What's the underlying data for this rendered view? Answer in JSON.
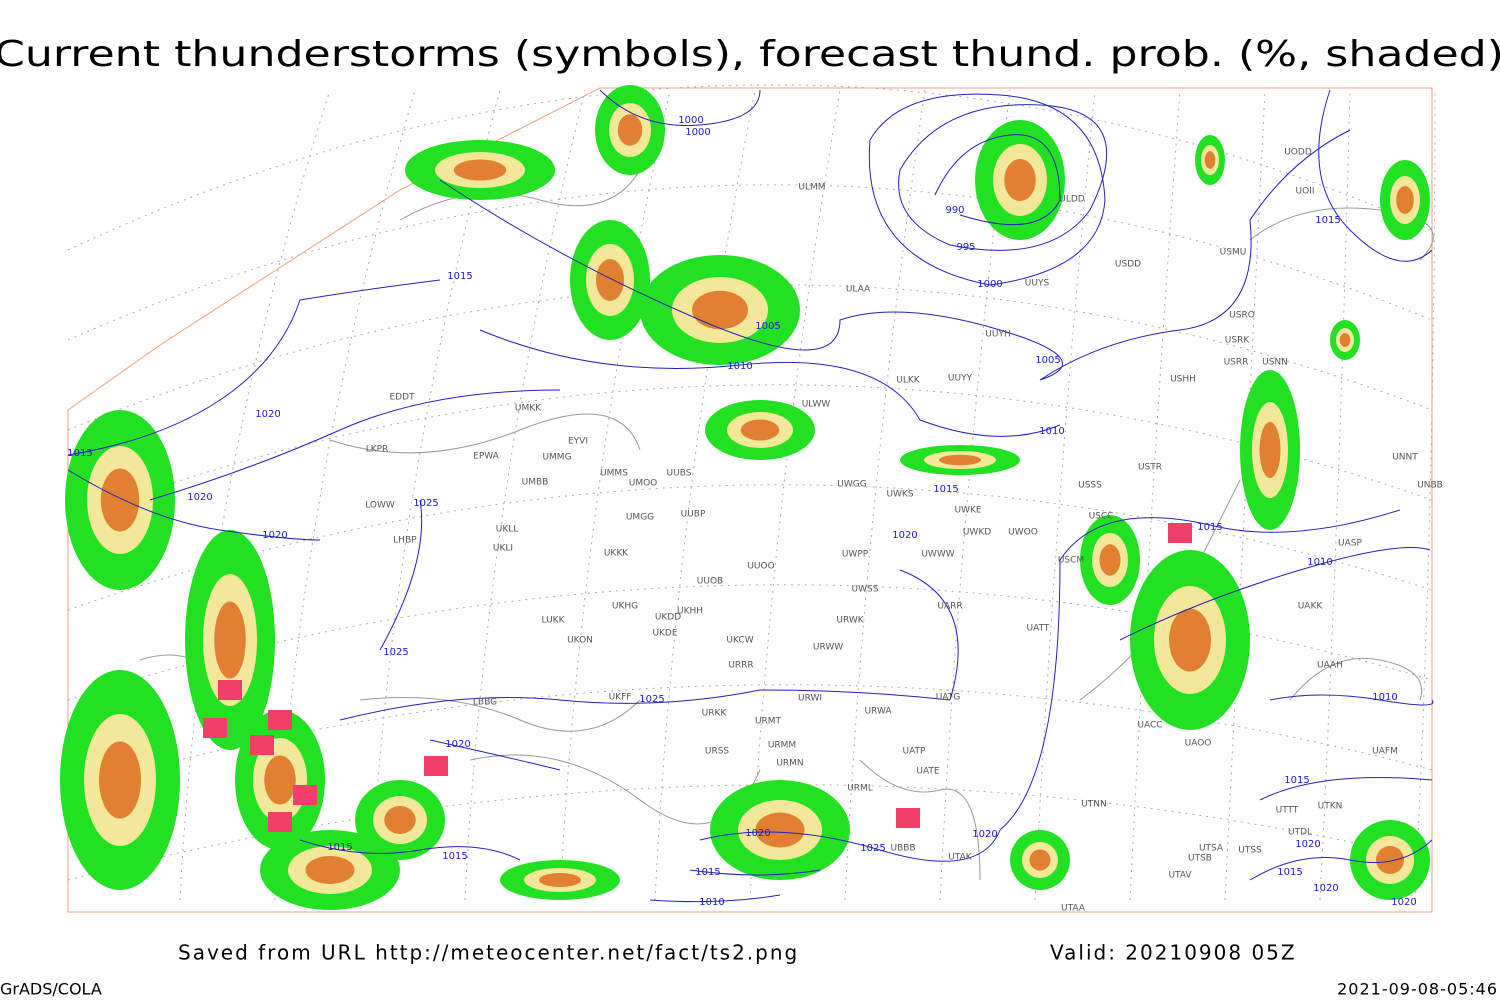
{
  "title": "Current thunderstorms (symbols), forecast thund. prob. (%, shaded)",
  "footer": {
    "source": "Saved from URL http://meteocenter.net/fact/ts2.png",
    "valid": "Valid: 20210908 05Z",
    "software": "GrADS/COLA",
    "timestamp": "2021-09-08-05:46"
  },
  "isobar_labels": [
    1000,
    1000,
    990,
    995,
    1000,
    1005,
    1010,
    1005,
    1010,
    1015,
    1015,
    1020,
    1020,
    1020,
    1025,
    1025,
    1025,
    1020,
    1015,
    1015,
    1015,
    1020,
    1015,
    1010,
    1010,
    1020,
    1025,
    1015,
    1010,
    1020,
    1015,
    1020,
    1015,
    1020,
    1020,
    1015
  ],
  "stations": [
    "ULMM",
    "ULAA",
    "UUYS",
    "UUYY",
    "UUYH",
    "ULDD",
    "UODD",
    "UOII",
    "USDD",
    "USMU",
    "USRK",
    "USRR",
    "USNN",
    "USRO",
    "USHH",
    "ULKK",
    "ULWW",
    "EDDT",
    "EPWA",
    "EYVI",
    "UMKK",
    "UMMG",
    "UMBB",
    "LKPR",
    "LOWW",
    "LHBP",
    "UKLL",
    "UKLI",
    "UMMS",
    "UMOO",
    "UUBS",
    "UUBP",
    "UMGG",
    "UKKK",
    "UUOO",
    "UUOB",
    "LUKK",
    "UKHG",
    "UKDD",
    "UKHH",
    "UKDE",
    "UKON",
    "UKCW",
    "URWW",
    "URWK",
    "UWSS",
    "URRR",
    "UKFF",
    "URKK",
    "URWI",
    "UATG",
    "URMT",
    "URWA",
    "URSS",
    "URMM",
    "URMN",
    "UATP",
    "UATE",
    "URML",
    "UBBB",
    "UTAK",
    "LBBG",
    "UWGG",
    "UWKS",
    "UWKE",
    "UWKD",
    "UWOO",
    "UWPP",
    "UWWW",
    "UARR",
    "UATT",
    "USSS",
    "USCC",
    "USCM",
    "USTR",
    "UNNT",
    "UNBB",
    "UASP",
    "UAKK",
    "UAAH",
    "UACC",
    "UAOO",
    "UTNN",
    "UTSA",
    "UTSB",
    "UTSS",
    "UTAV",
    "UTAA",
    "UTDL",
    "UTTT",
    "UAFM",
    "UTKN"
  ]
}
